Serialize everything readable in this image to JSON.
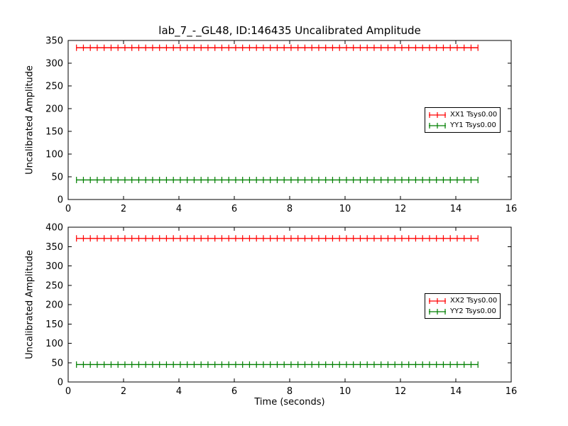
{
  "figure": {
    "title": "lab_7_-_GL48, ID:146435 Uncalibrated Amplitude",
    "background": "#ffffff",
    "axis_color": "#000000"
  },
  "chart_data": [
    {
      "type": "line",
      "id": "top",
      "ylabel": "Uncalibrated Amplitude",
      "xlabel": "",
      "xlim": [
        0,
        16
      ],
      "ylim": [
        0,
        350
      ],
      "xticks": [
        0,
        2,
        4,
        6,
        8,
        10,
        12,
        14,
        16
      ],
      "yticks": [
        0,
        50,
        100,
        150,
        200,
        250,
        300,
        350
      ],
      "grid": false,
      "legend_position": "center-right",
      "x_start": 0.3,
      "x_end": 14.8,
      "n_points": 59,
      "series": [
        {
          "name": "XX1 Tsys0.00",
          "color": "#ff0000",
          "constant_value": 334,
          "marker": "vertical-tick"
        },
        {
          "name": "YY1 Tsys0.00",
          "color": "#007f00",
          "constant_value": 43,
          "marker": "vertical-tick"
        }
      ]
    },
    {
      "type": "line",
      "id": "bottom",
      "ylabel": "Uncalibrated Amplitude",
      "xlabel": "Time (seconds)",
      "xlim": [
        0,
        16
      ],
      "ylim": [
        0,
        400
      ],
      "xticks": [
        0,
        2,
        4,
        6,
        8,
        10,
        12,
        14,
        16
      ],
      "yticks": [
        0,
        50,
        100,
        150,
        200,
        250,
        300,
        350,
        400
      ],
      "grid": false,
      "legend_position": "center-right",
      "x_start": 0.3,
      "x_end": 14.8,
      "n_points": 59,
      "series": [
        {
          "name": "XX2 Tsys0.00",
          "color": "#ff0000",
          "constant_value": 371,
          "marker": "vertical-tick"
        },
        {
          "name": "YY2 Tsys0.00",
          "color": "#007f00",
          "constant_value": 45,
          "marker": "vertical-tick"
        }
      ]
    }
  ]
}
